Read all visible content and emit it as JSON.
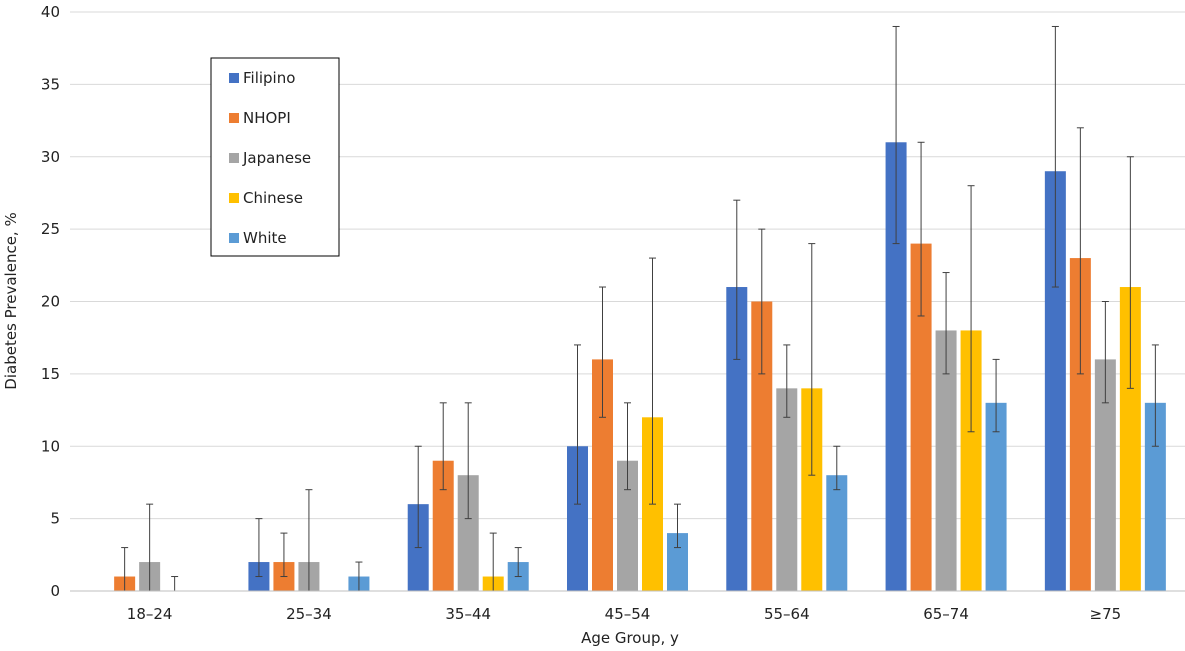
{
  "chart_data": {
    "type": "bar",
    "title": "",
    "xlabel": "Age Group, y",
    "ylabel": "Diabetes Prevalence, %",
    "ylim": [
      0,
      40
    ],
    "yticks": [
      0,
      5,
      10,
      15,
      20,
      25,
      30,
      35,
      40
    ],
    "grid": true,
    "legend_position": "top-left",
    "categories": [
      "18–24",
      "25–34",
      "35–44",
      "45–54",
      "55–64",
      "65–74",
      "≥75"
    ],
    "series": [
      {
        "name": "Filipino",
        "color": "#4472c4",
        "values": [
          null,
          2,
          6,
          10,
          21,
          31,
          29
        ],
        "error_low": [
          null,
          1,
          3,
          6,
          16,
          24,
          21
        ],
        "error_high": [
          null,
          5,
          10,
          17,
          27,
          39,
          39
        ]
      },
      {
        "name": "NHOPI",
        "color": "#ed7d31",
        "values": [
          1,
          2,
          9,
          16,
          20,
          24,
          23
        ],
        "error_low": [
          0,
          1,
          7,
          12,
          15,
          19,
          15
        ],
        "error_high": [
          3,
          4,
          13,
          21,
          25,
          31,
          32
        ]
      },
      {
        "name": "Japanese",
        "color": "#a5a5a5",
        "values": [
          2,
          2,
          8,
          9,
          14,
          18,
          16
        ],
        "error_low": [
          0,
          0,
          5,
          7,
          12,
          15,
          13
        ],
        "error_high": [
          6,
          7,
          13,
          13,
          17,
          22,
          20
        ]
      },
      {
        "name": "Chinese",
        "color": "#ffc000",
        "values": [
          0,
          null,
          1,
          12,
          14,
          18,
          21
        ],
        "error_low": [
          0,
          null,
          0,
          6,
          8,
          11,
          14
        ],
        "error_high": [
          1,
          null,
          4,
          23,
          24,
          28,
          30
        ]
      },
      {
        "name": "White",
        "color": "#5b9bd5",
        "values": [
          null,
          1,
          2,
          4,
          8,
          13,
          13
        ],
        "error_low": [
          null,
          0,
          1,
          3,
          7,
          11,
          10
        ],
        "error_high": [
          null,
          2,
          3,
          6,
          10,
          16,
          17
        ]
      }
    ]
  }
}
